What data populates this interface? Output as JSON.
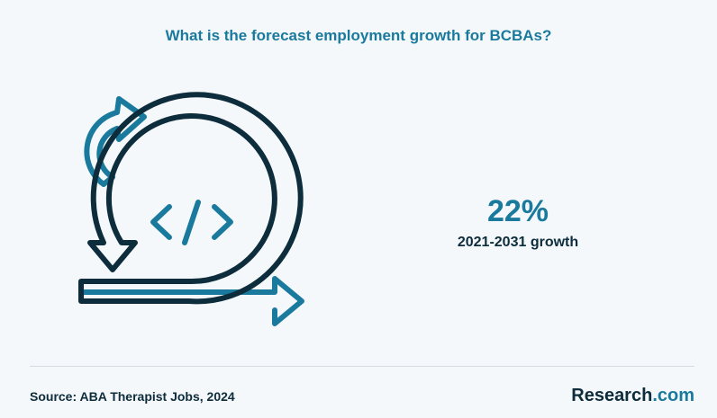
{
  "header": {
    "title": "What is the forecast employment growth for BCBAs?"
  },
  "stat": {
    "value": "22%",
    "label": "2021-2031 growth"
  },
  "footer": {
    "source": "Source: ABA Therapist Jobs, 2024",
    "brand_main": "Research",
    "brand_suffix": ".com"
  }
}
